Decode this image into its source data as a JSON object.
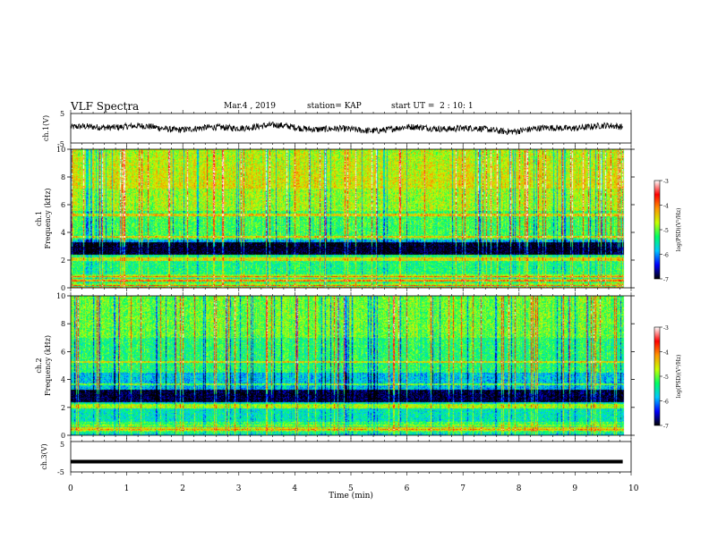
{
  "header": {
    "title": "VLF Spectra",
    "date": "Mar.4 , 2019",
    "station": "station= KAP",
    "start_time": "start UT =  2 : 10: 1"
  },
  "chart_data": [
    {
      "type": "line",
      "name": "ch1-waveform",
      "ylabel": "ch.1(V)",
      "ylim": [
        -5,
        5
      ],
      "yticks": [
        "5",
        "-5"
      ],
      "xlim": [
        0,
        10
      ]
    },
    {
      "type": "heatmap",
      "name": "ch1-spectrogram",
      "ylabel_line1": "ch.1",
      "ylabel_line2": "Frequency (kHz)",
      "ylim": [
        0,
        10
      ],
      "yticks": [
        "0",
        "2",
        "4",
        "6",
        "8",
        "10"
      ],
      "xlim": [
        0,
        10
      ],
      "colorbar": {
        "label": "log(PSD)(V²/Hz)",
        "ticks": [
          "-3",
          "-4",
          "-5",
          "-6",
          "-7"
        ],
        "range": [
          -7,
          -3
        ],
        "colors": [
          "#000000",
          "#0000ff",
          "#00c8ff",
          "#00ff64",
          "#c8ff00",
          "#ff9600",
          "#ff0000",
          "#ffffff"
        ]
      }
    },
    {
      "type": "heatmap",
      "name": "ch2-spectrogram",
      "ylabel_line1": "ch.2",
      "ylabel_line2": "Frequency (kHz)",
      "ylim": [
        0,
        10
      ],
      "yticks": [
        "0",
        "2",
        "4",
        "6",
        "8",
        "10"
      ],
      "xlim": [
        0,
        10
      ],
      "colorbar": {
        "label": "log(PSD)(V²/Hz)",
        "ticks": [
          "-3",
          "-4",
          "-5",
          "-6",
          "-7"
        ],
        "range": [
          -7,
          -3
        ],
        "colors": [
          "#000000",
          "#0000ff",
          "#00c8ff",
          "#00ff64",
          "#c8ff00",
          "#ff9600",
          "#ff0000",
          "#ffffff"
        ]
      }
    },
    {
      "type": "line",
      "name": "ch3-waveform",
      "ylabel": "ch.3(V)",
      "ylim": [
        -5,
        5
      ],
      "yticks": [
        "5",
        "-5"
      ],
      "xlim": [
        0,
        10
      ],
      "y_constant": -1.6,
      "xlabel": "Time (min)",
      "xticks": [
        "0",
        "1",
        "2",
        "3",
        "4",
        "5",
        "6",
        "7",
        "8",
        "9",
        "10"
      ]
    }
  ]
}
